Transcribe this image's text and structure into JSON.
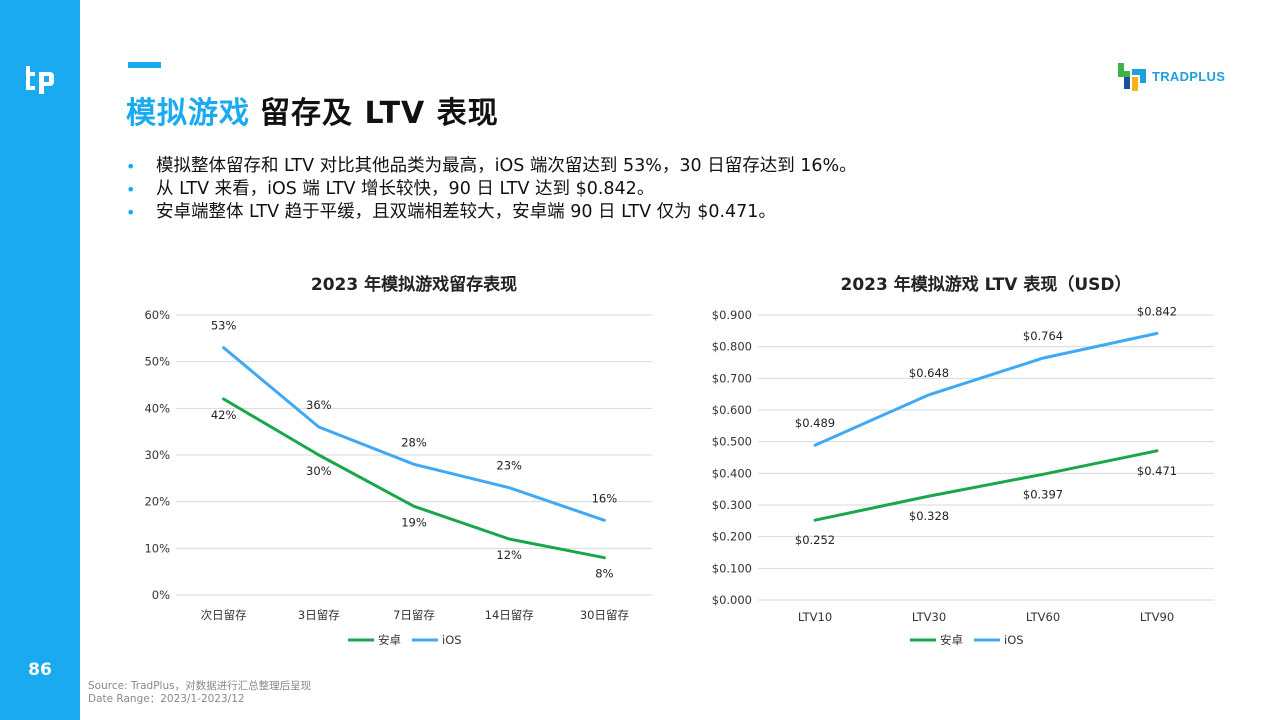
{
  "page": {
    "number": "86"
  },
  "header": {
    "title_highlight": "模拟游戏",
    "title_rest": "留存及 LTV 表现",
    "brand": "TRADPLUS"
  },
  "bullets": [
    "模拟整体留存和 LTV 对比其他品类为最高，iOS 端次留达到 53%，30 日留存达到 16%。",
    "从 LTV 来看，iOS 端 LTV 增长较快，90 日 LTV 达到 $0.842。",
    "安卓端整体 LTV 趋于平缓，且双端相差较大，安卓端 90 日 LTV 仅为 $0.471。"
  ],
  "colors": {
    "accent": "#19aaf0",
    "ios": "#3fa9f5",
    "android": "#1aa64a",
    "grid": "#d9d9d9"
  },
  "chart_data": [
    {
      "id": "retention",
      "type": "line",
      "title": "2023 年模拟游戏留存表现",
      "categories": [
        "次日留存",
        "3日留存",
        "7日留存",
        "14日留存",
        "30日留存"
      ],
      "y_ticks": [
        "0%",
        "10%",
        "20%",
        "30%",
        "40%",
        "50%",
        "60%"
      ],
      "ylim": [
        0,
        60
      ],
      "series": [
        {
          "name": "安卓",
          "color": "#1aa64a",
          "values": [
            42,
            30,
            19,
            12,
            8
          ],
          "labels": [
            "42%",
            "30%",
            "19%",
            "12%",
            "8%"
          ]
        },
        {
          "name": "iOS",
          "color": "#3fa9f5",
          "values": [
            53,
            36,
            28,
            23,
            16
          ],
          "labels": [
            "53%",
            "36%",
            "28%",
            "23%",
            "16%"
          ]
        }
      ],
      "legend_position": "bottom"
    },
    {
      "id": "ltv",
      "type": "line",
      "title": "2023 年模拟游戏 LTV 表现（USD）",
      "categories": [
        "LTV10",
        "LTV30",
        "LTV60",
        "LTV90"
      ],
      "y_ticks": [
        "$0.000",
        "$0.100",
        "$0.200",
        "$0.300",
        "$0.400",
        "$0.500",
        "$0.600",
        "$0.700",
        "$0.800",
        "$0.900"
      ],
      "ylim": [
        0,
        0.9
      ],
      "series": [
        {
          "name": "安卓",
          "color": "#1aa64a",
          "values": [
            0.252,
            0.328,
            0.397,
            0.471
          ],
          "labels": [
            "$0.252",
            "$0.328",
            "$0.397",
            "$0.471"
          ]
        },
        {
          "name": "iOS",
          "color": "#3fa9f5",
          "values": [
            0.489,
            0.648,
            0.764,
            0.842
          ],
          "labels": [
            "$0.489",
            "$0.648",
            "$0.764",
            "$0.842"
          ]
        }
      ],
      "legend_position": "bottom"
    }
  ],
  "footer": {
    "source": "Source: TradPlus，对数据进行汇总整理后呈现",
    "date_range": "Date Range：2023/1-2023/12"
  }
}
